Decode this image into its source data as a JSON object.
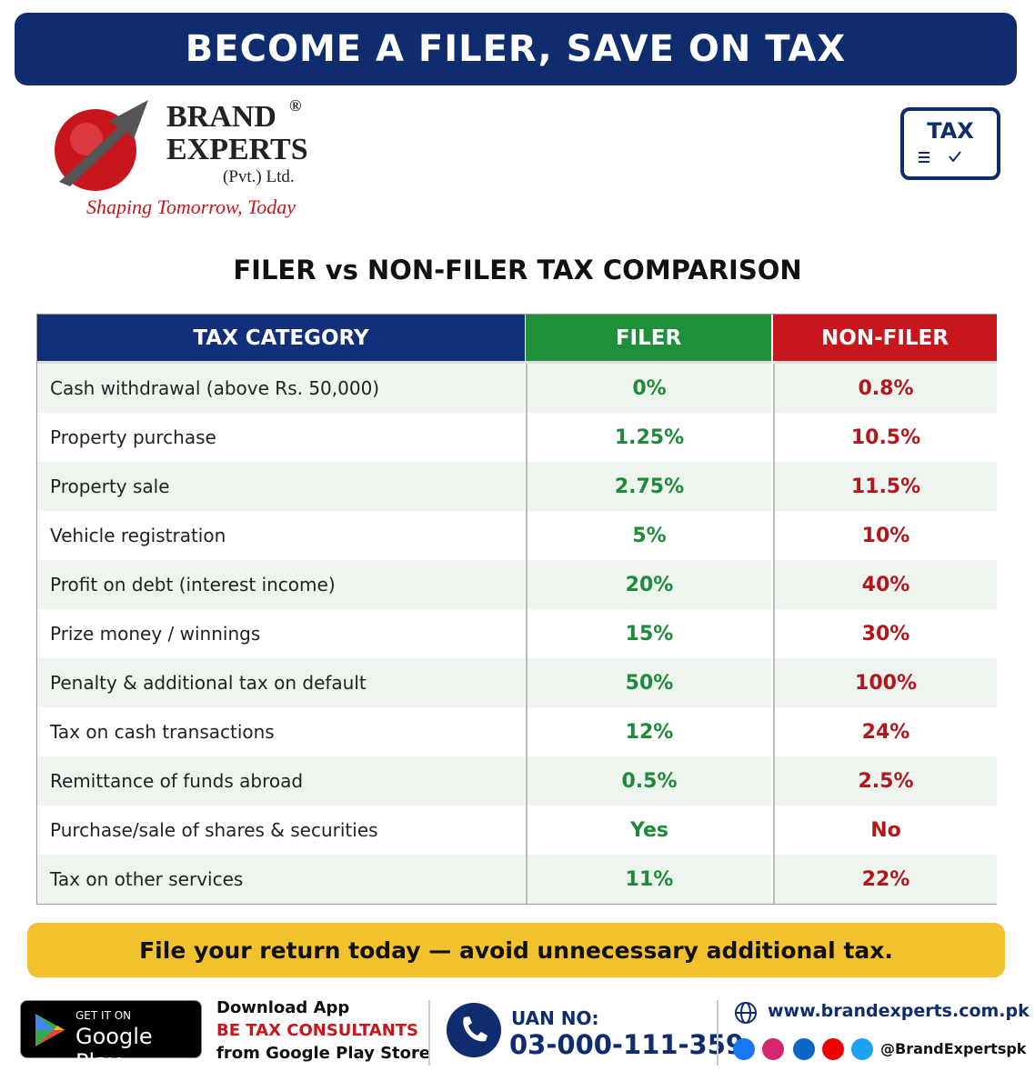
{
  "header": {
    "title": "BECOME A FILER, SAVE ON TAX"
  },
  "brand": {
    "name_line1": "BRAND",
    "registered": "®",
    "name_line2": "EXPERTS",
    "suffix": "(Pvt.) Ltd.",
    "tagline": "Shaping Tomorrow, Today"
  },
  "badge": {
    "label": "TAX"
  },
  "section_title": "FILER vs NON-FILER TAX COMPARISON",
  "table": {
    "columns": [
      "TAX CATEGORY",
      "FILER",
      "NON-FILER"
    ],
    "rows": [
      [
        "Cash withdrawal (above Rs. 50,000)",
        "0%",
        "0.8%"
      ],
      [
        "Property purchase",
        "1.25%",
        "10.5%"
      ],
      [
        "Property sale",
        "2.75%",
        "11.5%"
      ],
      [
        "Vehicle registration",
        "5%",
        "10%"
      ],
      [
        "Profit on debt (interest income)",
        "20%",
        "40%"
      ],
      [
        "Prize money / winnings",
        "15%",
        "30%"
      ],
      [
        "Penalty & additional tax on default",
        "50%",
        "100%"
      ],
      [
        "Tax on cash transactions",
        "12%",
        "24%"
      ],
      [
        "Remittance of funds abroad",
        "0.5%",
        "2.5%"
      ],
      [
        "Purchase/sale of shares & securities",
        "Yes",
        "No"
      ],
      [
        "Tax on other services",
        "11%",
        "22%"
      ]
    ]
  },
  "banner": "File your return today — avoid unnecessary additional tax.",
  "footer": {
    "store_small": "GET IT ON",
    "store_big": "Google Play",
    "app_line1": "Download App",
    "app_line2": "BE TAX CONSULTANTS",
    "app_line3": "from Google Play Store",
    "uan_label": "UAN NO:",
    "uan": "03-000-111-359",
    "website": "www.brandexperts.com.pk",
    "handle": "@BrandExpertspk"
  }
}
